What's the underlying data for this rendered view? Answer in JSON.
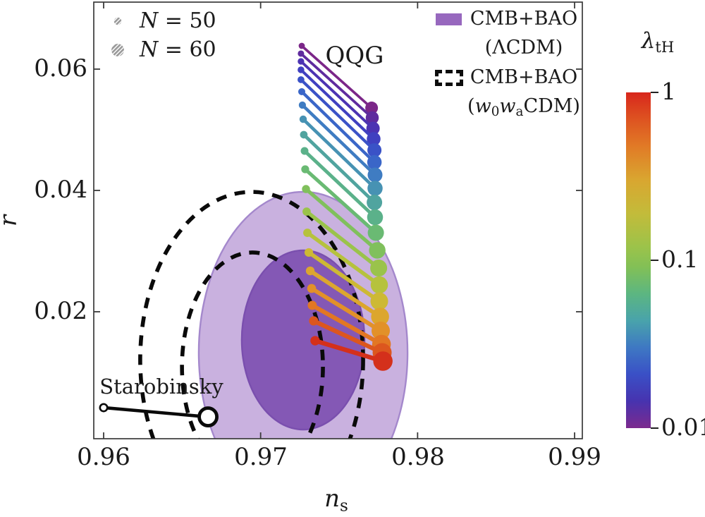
{
  "annotations": {
    "qqg": "QQG",
    "starobinsky": "Starobinsky"
  },
  "marker_legend": {
    "n50_symbol": "small-hatched-dot",
    "n50_var": "N",
    "n50_eq": " = 50",
    "n60_symbol": "large-hatched-dot",
    "n60_var": "N",
    "n60_eq": " = 60"
  },
  "contour_legend": {
    "entry1_line1": "CMB+BAO",
    "entry1_line2": "(ΛCDM)",
    "entry1_swatch_color": "#9768BE",
    "entry2_line1": "CMB+BAO",
    "entry2_p1": "(",
    "entry2_w1": "w",
    "entry2_s1": "0",
    "entry2_w2": "w",
    "entry2_s2": "a",
    "entry2_p2": "CDM)",
    "entry2_swatch_style": "black-dashed-outline"
  },
  "axes": {
    "x_label_main": "n",
    "x_label_sub": "s",
    "y_label": "r"
  },
  "colorbar": {
    "title_main": "λ",
    "title_sub": "tH",
    "tick1": "1",
    "tick2": "0.1",
    "tick3": "0.01"
  },
  "chart_data": {
    "type": "scatter",
    "title": "",
    "xlabel": "n_s",
    "ylabel": "r",
    "xlim": [
      0.95937,
      0.99049
    ],
    "ylim": [
      -0.00093,
      0.07105
    ],
    "x_ticks": [
      {
        "v": 0.96,
        "label": "0.96"
      },
      {
        "v": 0.97,
        "label": "0.97"
      },
      {
        "v": 0.98,
        "label": "0.98"
      },
      {
        "v": 0.99,
        "label": "0.99"
      }
    ],
    "y_ticks": [
      {
        "v": 0.02,
        "label": "0.02"
      },
      {
        "v": 0.04,
        "label": "0.04"
      },
      {
        "v": 0.06,
        "label": "0.06"
      }
    ],
    "grid": false,
    "legend_position": "top-right",
    "colorbar": {
      "scale": "log",
      "range": [
        0.01,
        1
      ],
      "ticks": [
        {
          "v": 1,
          "label": "1",
          "frac": 0
        },
        {
          "v": 0.1,
          "label": "0.1",
          "frac": 0.5
        },
        {
          "v": 0.01,
          "label": "0.01",
          "frac": 1
        }
      ],
      "gradient_top_to_bottom": [
        [
          0.0,
          "#D8261C"
        ],
        [
          0.07,
          "#DD4E20"
        ],
        [
          0.16,
          "#E17A26"
        ],
        [
          0.26,
          "#D9A630"
        ],
        [
          0.36,
          "#C3BB3A"
        ],
        [
          0.46,
          "#9CC34A"
        ],
        [
          0.52,
          "#82C056"
        ],
        [
          0.6,
          "#5CB681"
        ],
        [
          0.68,
          "#49A3AB"
        ],
        [
          0.76,
          "#3E78C3"
        ],
        [
          0.84,
          "#3A50C6"
        ],
        [
          0.92,
          "#4733AF"
        ],
        [
          1.0,
          "#7C2A8E"
        ]
      ]
    },
    "contours": {
      "lcdm_filled": [
        {
          "level": "2sigma",
          "fill": "#C9B1DF",
          "stroke": "#A488CC",
          "cx": 0.97271,
          "cy": 0.01326,
          "rx": 0.00665,
          "ry": 0.02651
        },
        {
          "level": "1sigma",
          "fill": "#8458B5",
          "stroke": "#7A4FAE",
          "cx": 0.97271,
          "cy": 0.01535,
          "rx": 0.00391,
          "ry": 0.01477
        }
      ],
      "w0wa_dashed": [
        {
          "level": "2sigma",
          "cx": 0.96943,
          "cy": 0.01209,
          "rx": 0.0071,
          "ry": 0.02767
        },
        {
          "level": "1sigma",
          "cx": 0.96948,
          "cy": 0.01093,
          "rx": 0.00449,
          "ry": 0.01884
        }
      ]
    },
    "qqg_segments": [
      {
        "lambda": 0.01,
        "color": "#7B2688",
        "n50": {
          "ns": 0.97262,
          "r": 0.06384
        },
        "n60": {
          "ns": 0.97707,
          "r": 0.0536
        }
      },
      {
        "lambda": 0.013,
        "color": "#5F2B9E",
        "n50": {
          "ns": 0.97257,
          "r": 0.06256
        },
        "n60": {
          "ns": 0.97711,
          "r": 0.05198
        }
      },
      {
        "lambda": 0.016,
        "color": "#4C33B2",
        "n50": {
          "ns": 0.97257,
          "r": 0.06128
        },
        "n60": {
          "ns": 0.97716,
          "r": 0.05023
        }
      },
      {
        "lambda": 0.021,
        "color": "#4040C0",
        "n50": {
          "ns": 0.97257,
          "r": 0.05988
        },
        "n60": {
          "ns": 0.9772,
          "r": 0.04849
        }
      },
      {
        "lambda": 0.026,
        "color": "#3A52C7",
        "n50": {
          "ns": 0.97257,
          "r": 0.05826
        },
        "n60": {
          "ns": 0.97725,
          "r": 0.04663
        }
      },
      {
        "lambda": 0.034,
        "color": "#3A66C8",
        "n50": {
          "ns": 0.97262,
          "r": 0.05628
        },
        "n60": {
          "ns": 0.97725,
          "r": 0.04465
        }
      },
      {
        "lambda": 0.043,
        "color": "#3F7CC2",
        "n50": {
          "ns": 0.97266,
          "r": 0.05407
        },
        "n60": {
          "ns": 0.97729,
          "r": 0.04256
        }
      },
      {
        "lambda": 0.055,
        "color": "#4792B3",
        "n50": {
          "ns": 0.97271,
          "r": 0.05174
        },
        "n60": {
          "ns": 0.97729,
          "r": 0.04035
        }
      },
      {
        "lambda": 0.07,
        "color": "#50A49F",
        "n50": {
          "ns": 0.97275,
          "r": 0.04919
        },
        "n60": {
          "ns": 0.97725,
          "r": 0.03802
        }
      },
      {
        "lambda": 0.089,
        "color": "#5BB18A",
        "n50": {
          "ns": 0.9728,
          "r": 0.04651
        },
        "n60": {
          "ns": 0.97729,
          "r": 0.03558
        }
      },
      {
        "lambda": 0.11,
        "color": "#6ABA73",
        "n50": {
          "ns": 0.97284,
          "r": 0.04349
        },
        "n60": {
          "ns": 0.97734,
          "r": 0.03302
        }
      },
      {
        "lambda": 0.14,
        "color": "#80C05C",
        "n50": {
          "ns": 0.97289,
          "r": 0.04023
        },
        "n60": {
          "ns": 0.97743,
          "r": 0.03012
        }
      },
      {
        "lambda": 0.18,
        "color": "#9AC34B",
        "n50": {
          "ns": 0.97293,
          "r": 0.03651
        },
        "n60": {
          "ns": 0.97752,
          "r": 0.02721
        }
      },
      {
        "lambda": 0.23,
        "color": "#B6C23D",
        "n50": {
          "ns": 0.97298,
          "r": 0.03302
        },
        "n60": {
          "ns": 0.97756,
          "r": 0.02442
        }
      },
      {
        "lambda": 0.3,
        "color": "#CDB934",
        "n50": {
          "ns": 0.97307,
          "r": 0.02977
        },
        "n60": {
          "ns": 0.97756,
          "r": 0.02174
        }
      },
      {
        "lambda": 0.38,
        "color": "#DCA62E",
        "n50": {
          "ns": 0.97316,
          "r": 0.02674
        },
        "n60": {
          "ns": 0.97761,
          "r": 0.01919
        }
      },
      {
        "lambda": 0.48,
        "color": "#E29129",
        "n50": {
          "ns": 0.97325,
          "r": 0.02384
        },
        "n60": {
          "ns": 0.97765,
          "r": 0.01686
        }
      },
      {
        "lambda": 0.62,
        "color": "#E27723",
        "n50": {
          "ns": 0.97329,
          "r": 0.02105
        },
        "n60": {
          "ns": 0.9777,
          "r": 0.01465
        }
      },
      {
        "lambda": 0.79,
        "color": "#DC561E",
        "n50": {
          "ns": 0.97338,
          "r": 0.01849
        },
        "n60": {
          "ns": 0.97774,
          "r": 0.01326
        }
      },
      {
        "lambda": 1.0,
        "color": "#D4301B",
        "n50": {
          "ns": 0.97347,
          "r": 0.01523
        },
        "n60": {
          "ns": 0.97779,
          "r": 0.01186
        }
      }
    ],
    "starobinsky": {
      "n50": {
        "ns": 0.96,
        "r": 0.00419
      },
      "n60": {
        "ns": 0.96665,
        "r": 0.00267
      },
      "color": "#0a0a0a"
    }
  }
}
